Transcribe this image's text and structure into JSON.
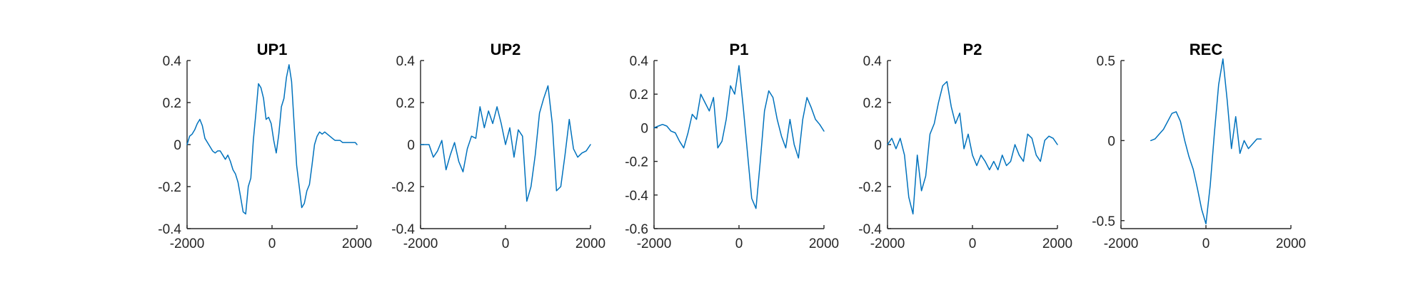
{
  "colors": {
    "line": "#0072BD",
    "axis": "#262626"
  },
  "chart_data": [
    {
      "type": "line",
      "title": "UP1",
      "xlim": [
        -2000,
        2000
      ],
      "ylim": [
        -0.4,
        0.4
      ],
      "xticks": [
        "-2000",
        "0",
        "2000"
      ],
      "yticks": [
        "-0.4",
        "-0.2",
        "0",
        "0.2",
        "0.4"
      ],
      "series": [
        {
          "x": [
            -2000,
            -1940,
            -1880,
            -1820,
            -1760,
            -1700,
            -1640,
            -1580,
            -1520,
            -1460,
            -1400,
            -1340,
            -1280,
            -1220,
            -1160,
            -1100,
            -1040,
            -980,
            -920,
            -860,
            -800,
            -740,
            -680,
            -620,
            -560,
            -500,
            -440,
            -380,
            -320,
            -260,
            -200,
            -140,
            -80,
            -20,
            40,
            100,
            160,
            220,
            280,
            340,
            400,
            460,
            520,
            580,
            640,
            700,
            760,
            820,
            880,
            940,
            1000,
            1060,
            1120,
            1180,
            1240,
            1300,
            1360,
            1420,
            1480,
            1540,
            1600,
            1660,
            1720,
            1780,
            1840,
            1900,
            1960,
            2000
          ],
          "y": [
            0,
            0.04,
            0.05,
            0.07,
            0.1,
            0.12,
            0.09,
            0.03,
            0.01,
            -0.01,
            -0.03,
            -0.04,
            -0.03,
            -0.03,
            -0.05,
            -0.07,
            -0.05,
            -0.08,
            -0.12,
            -0.14,
            -0.18,
            -0.25,
            -0.32,
            -0.33,
            -0.2,
            -0.16,
            0.02,
            0.15,
            0.29,
            0.27,
            0.22,
            0.12,
            0.13,
            0.1,
            0.02,
            -0.04,
            0.05,
            0.18,
            0.22,
            0.32,
            0.38,
            0.3,
            0.1,
            -0.1,
            -0.2,
            -0.3,
            -0.28,
            -0.22,
            -0.19,
            -0.1,
            0.0,
            0.04,
            0.06,
            0.05,
            0.06,
            0.05,
            0.04,
            0.03,
            0.02,
            0.02,
            0.02,
            0.01,
            0.01,
            0.01,
            0.01,
            0.01,
            0.01,
            0.0
          ]
        }
      ]
    },
    {
      "type": "line",
      "title": "UP2",
      "xlim": [
        -2000,
        2000
      ],
      "ylim": [
        -0.4,
        0.4
      ],
      "xticks": [
        "-2000",
        "0",
        "2000"
      ],
      "yticks": [
        "-0.4",
        "-0.2",
        "0",
        "0.2",
        "0.4"
      ],
      "series": [
        {
          "x": [
            -2000,
            -1900,
            -1800,
            -1700,
            -1600,
            -1500,
            -1400,
            -1300,
            -1200,
            -1100,
            -1000,
            -900,
            -800,
            -700,
            -600,
            -500,
            -400,
            -300,
            -200,
            -100,
            0,
            100,
            200,
            300,
            400,
            500,
            600,
            700,
            800,
            900,
            1000,
            1100,
            1200,
            1300,
            1400,
            1500,
            1600,
            1700,
            1800,
            1900,
            2000
          ],
          "y": [
            0,
            0,
            0,
            -0.06,
            -0.03,
            0.02,
            -0.12,
            -0.05,
            0.01,
            -0.08,
            -0.13,
            -0.02,
            0.04,
            0.03,
            0.18,
            0.08,
            0.16,
            0.1,
            0.18,
            0.1,
            0.0,
            0.08,
            -0.06,
            0.07,
            0.04,
            -0.27,
            -0.2,
            -0.05,
            0.15,
            0.22,
            0.28,
            0.1,
            -0.22,
            -0.2,
            -0.05,
            0.12,
            -0.02,
            -0.06,
            -0.04,
            -0.03,
            0.0
          ]
        }
      ]
    },
    {
      "type": "line",
      "title": "P1",
      "xlim": [
        -2000,
        2000
      ],
      "ylim": [
        -0.6,
        0.4
      ],
      "xticks": [
        "-2000",
        "0",
        "2000"
      ],
      "yticks": [
        "-0.6",
        "-0.4",
        "-0.2",
        "0",
        "0.2",
        "0.4"
      ],
      "series": [
        {
          "x": [
            -2000,
            -1900,
            -1800,
            -1700,
            -1600,
            -1500,
            -1400,
            -1300,
            -1200,
            -1100,
            -1000,
            -900,
            -800,
            -700,
            -600,
            -500,
            -400,
            -300,
            -200,
            -100,
            0,
            100,
            200,
            300,
            400,
            500,
            600,
            700,
            800,
            900,
            1000,
            1100,
            1200,
            1300,
            1400,
            1500,
            1600,
            1700,
            1800,
            1900,
            2000
          ],
          "y": [
            0,
            0.01,
            0.02,
            0.01,
            -0.02,
            -0.03,
            -0.08,
            -0.12,
            -0.03,
            0.08,
            0.05,
            0.2,
            0.15,
            0.1,
            0.18,
            -0.12,
            -0.08,
            0.05,
            0.25,
            0.2,
            0.37,
            0.12,
            -0.15,
            -0.42,
            -0.48,
            -0.2,
            0.1,
            0.22,
            0.18,
            0.05,
            -0.05,
            -0.12,
            0.05,
            -0.1,
            -0.18,
            0.05,
            0.18,
            0.12,
            0.05,
            0.02,
            -0.02
          ]
        }
      ]
    },
    {
      "type": "line",
      "title": "P2",
      "xlim": [
        -2000,
        2000
      ],
      "ylim": [
        -0.4,
        0.4
      ],
      "xticks": [
        "-2000",
        "0",
        "2000"
      ],
      "yticks": [
        "-0.4",
        "-0.2",
        "0",
        "0.2",
        "0.4"
      ],
      "series": [
        {
          "x": [
            -2000,
            -1900,
            -1800,
            -1700,
            -1600,
            -1500,
            -1400,
            -1300,
            -1200,
            -1100,
            -1000,
            -900,
            -800,
            -700,
            -600,
            -500,
            -400,
            -300,
            -200,
            -100,
            0,
            100,
            200,
            300,
            400,
            500,
            600,
            700,
            800,
            900,
            1000,
            1100,
            1200,
            1300,
            1400,
            1500,
            1600,
            1700,
            1800,
            1900,
            2000
          ],
          "y": [
            0,
            0.03,
            -0.02,
            0.03,
            -0.05,
            -0.25,
            -0.33,
            -0.05,
            -0.22,
            -0.15,
            0.05,
            0.1,
            0.2,
            0.28,
            0.3,
            0.18,
            0.1,
            0.15,
            -0.02,
            0.05,
            -0.05,
            -0.1,
            -0.05,
            -0.08,
            -0.12,
            -0.08,
            -0.12,
            -0.05,
            -0.1,
            -0.08,
            0.0,
            -0.05,
            -0.08,
            0.05,
            0.03,
            -0.05,
            -0.08,
            0.02,
            0.04,
            0.03,
            0.0
          ]
        }
      ]
    },
    {
      "type": "line",
      "title": "REC",
      "xlim": [
        -2000,
        2000
      ],
      "ylim": [
        -0.55,
        0.5
      ],
      "xticks": [
        "-2000",
        "0",
        "2000"
      ],
      "yticks": [
        "-0.5",
        "0",
        "0.5"
      ],
      "series": [
        {
          "x": [
            -1300,
            -1200,
            -1100,
            -1000,
            -900,
            -800,
            -700,
            -600,
            -500,
            -400,
            -300,
            -200,
            -100,
            0,
            100,
            200,
            300,
            400,
            500,
            600,
            700,
            800,
            900,
            1000,
            1100,
            1200,
            1300
          ],
          "y": [
            0,
            0.01,
            0.04,
            0.07,
            0.12,
            0.17,
            0.18,
            0.12,
            0.0,
            -0.1,
            -0.18,
            -0.3,
            -0.43,
            -0.52,
            -0.28,
            0.05,
            0.35,
            0.51,
            0.25,
            -0.05,
            0.15,
            -0.08,
            0.0,
            -0.05,
            -0.02,
            0.01,
            0.01
          ]
        }
      ]
    }
  ]
}
